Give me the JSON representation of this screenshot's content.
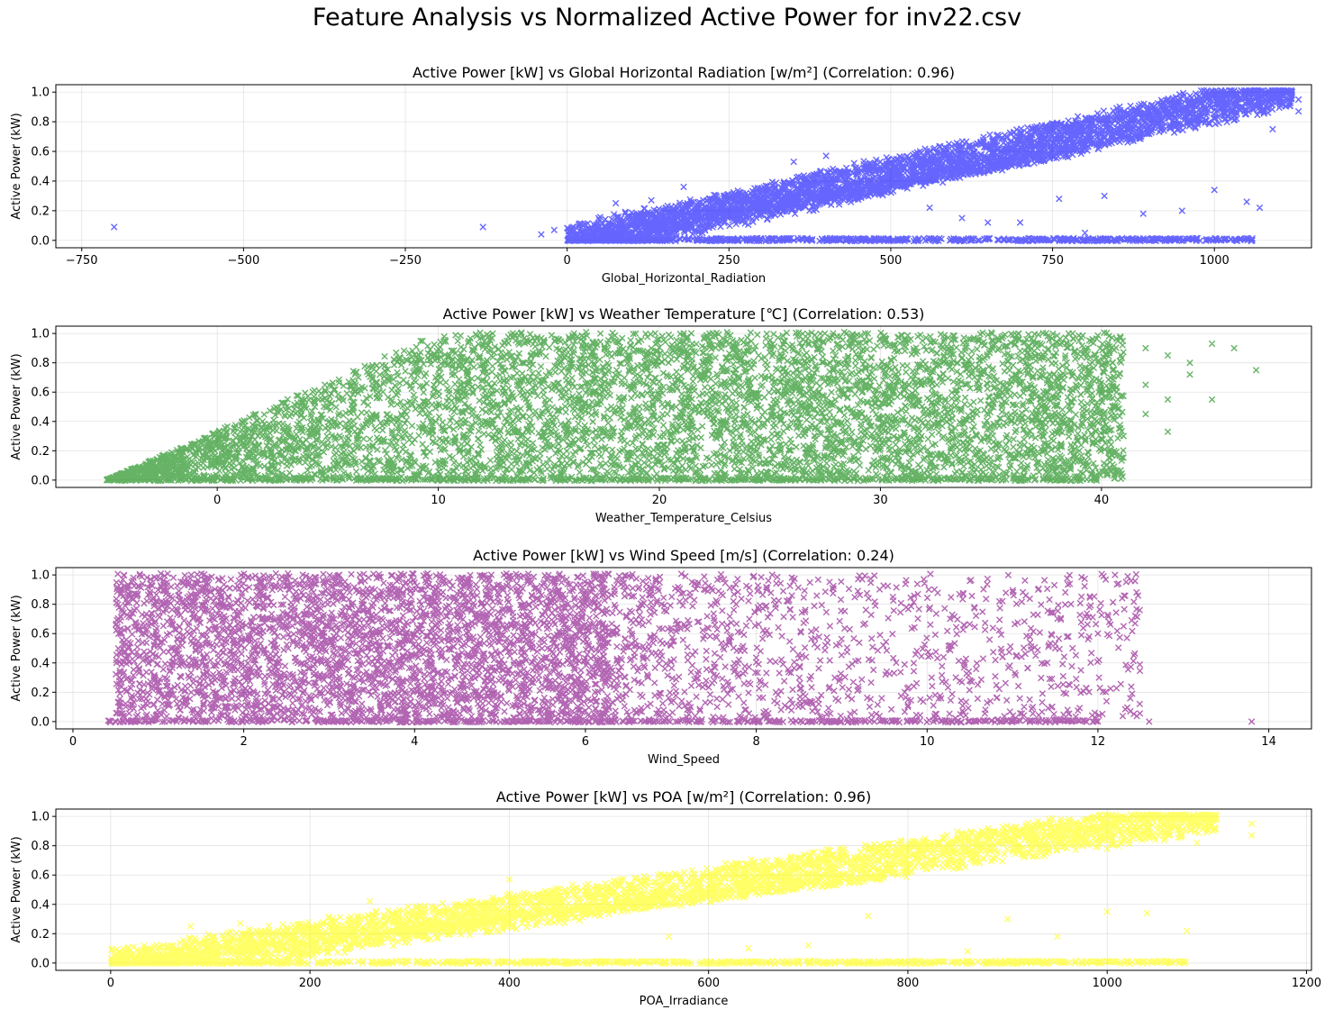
{
  "figure": {
    "suptitle": "Feature Analysis vs Normalized Active Power for inv22.csv"
  },
  "chart_data": [
    {
      "type": "scatter",
      "title": "Active Power [kW] vs Global Horizontal Radiation [w/m²] (Correlation: 0.96)",
      "xlabel": "Global_Horizontal_Radiation",
      "ylabel": "Active Power (kW)",
      "xlim": [
        -790,
        1150
      ],
      "ylim": [
        -0.05,
        1.05
      ],
      "xticks": [
        -750,
        -500,
        -250,
        0,
        250,
        500,
        750,
        1000
      ],
      "yticks": [
        0.0,
        0.2,
        0.4,
        0.6,
        0.8,
        1.0
      ],
      "marker": "x",
      "color": "#0000ff",
      "grid": true,
      "pattern": "linear",
      "x_range": [
        0,
        1120
      ],
      "slope": 0.00093,
      "zero_band": [
        0,
        1060
      ],
      "outliers": [
        [
          -700,
          0.09
        ],
        [
          -130,
          0.09
        ],
        [
          -40,
          0.04
        ],
        [
          -20,
          0.07
        ],
        [
          50,
          0.09
        ],
        [
          75,
          0.25
        ],
        [
          130,
          0.27
        ],
        [
          180,
          0.36
        ],
        [
          350,
          0.53
        ],
        [
          400,
          0.57
        ],
        [
          480,
          0.35
        ],
        [
          560,
          0.22
        ],
        [
          610,
          0.15
        ],
        [
          650,
          0.12
        ],
        [
          700,
          0.12
        ],
        [
          760,
          0.28
        ],
        [
          800,
          0.05
        ],
        [
          830,
          0.3
        ],
        [
          890,
          0.18
        ],
        [
          950,
          0.2
        ],
        [
          1000,
          0.34
        ],
        [
          1050,
          0.26
        ],
        [
          1070,
          0.22
        ],
        [
          1130,
          0.95
        ],
        [
          1130,
          0.87
        ],
        [
          1090,
          0.75
        ]
      ]
    },
    {
      "type": "scatter",
      "title": "Active Power [kW] vs Weather Temperature [℃] (Correlation: 0.53)",
      "xlabel": "Weather_Temperature_Celsius",
      "ylabel": "Active Power (kW)",
      "xlim": [
        -7.3,
        49.5
      ],
      "ylim": [
        -0.05,
        1.05
      ],
      "xticks": [
        0,
        10,
        20,
        30,
        40
      ],
      "yticks": [
        0.0,
        0.2,
        0.4,
        0.6,
        0.8,
        1.0
      ],
      "marker": "x",
      "color": "#008000",
      "grid": true,
      "pattern": "cloud",
      "x_range": [
        -5,
        40
      ],
      "core": [
        10,
        35
      ],
      "zero_band": [
        -5,
        40
      ],
      "outliers": [
        [
          42,
          0.9
        ],
        [
          43,
          0.85
        ],
        [
          44,
          0.8
        ],
        [
          45,
          0.93
        ],
        [
          46,
          0.9
        ],
        [
          47,
          0.75
        ],
        [
          44,
          0.72
        ],
        [
          43,
          0.55
        ],
        [
          45,
          0.55
        ],
        [
          43,
          0.33
        ],
        [
          41,
          0.3
        ],
        [
          42,
          0.45
        ],
        [
          42,
          0.65
        ],
        [
          39,
          0.2
        ],
        [
          40,
          0.6
        ],
        [
          38,
          0.7
        ]
      ]
    },
    {
      "type": "scatter",
      "title": "Active Power [kW] vs Wind Speed [m/s] (Correlation: 0.24)",
      "xlabel": "Wind_Speed",
      "ylabel": "Active Power (kW)",
      "xlim": [
        -0.2,
        14.5
      ],
      "ylim": [
        -0.05,
        1.05
      ],
      "xticks": [
        0,
        2,
        4,
        6,
        8,
        10,
        12,
        14
      ],
      "yticks": [
        0.0,
        0.2,
        0.4,
        0.6,
        0.8,
        1.0
      ],
      "marker": "x",
      "color": "#800080",
      "grid": true,
      "pattern": "dense-left",
      "x_range": [
        0.4,
        12.5
      ],
      "core": [
        0.5,
        6.2
      ],
      "zero_band": [
        0.4,
        12.0
      ],
      "outliers": [
        [
          12.4,
          0.19
        ],
        [
          12.2,
          1.0
        ],
        [
          13.8,
          0.0
        ],
        [
          12.6,
          0.0
        ],
        [
          11.9,
          0.78
        ],
        [
          12.0,
          0.6
        ],
        [
          11.8,
          0.35
        ],
        [
          11.5,
          0.5
        ],
        [
          10.5,
          0.28
        ],
        [
          11.2,
          0.15
        ],
        [
          10.8,
          0.42
        ],
        [
          11.3,
          0.9
        ]
      ]
    },
    {
      "type": "scatter",
      "title": "Active Power [kW] vs POA [w/m²] (Correlation: 0.96)",
      "xlabel": "POA_Irradiance",
      "ylabel": "Active Power (kW)",
      "xlim": [
        -55,
        1205
      ],
      "ylim": [
        -0.05,
        1.05
      ],
      "xticks": [
        0,
        200,
        400,
        600,
        800,
        1000,
        1200
      ],
      "yticks": [
        0.0,
        0.2,
        0.4,
        0.6,
        0.8,
        1.0
      ],
      "marker": "x",
      "color": "#ffff00",
      "grid": true,
      "pattern": "linear",
      "x_range": [
        0,
        1110
      ],
      "slope": 0.00093,
      "zero_band": [
        80,
        1080
      ],
      "outliers": [
        [
          80,
          0.25
        ],
        [
          130,
          0.27
        ],
        [
          260,
          0.42
        ],
        [
          400,
          0.57
        ],
        [
          560,
          0.18
        ],
        [
          640,
          0.1
        ],
        [
          700,
          0.12
        ],
        [
          760,
          0.32
        ],
        [
          860,
          0.08
        ],
        [
          900,
          0.3
        ],
        [
          950,
          0.18
        ],
        [
          1000,
          0.35
        ],
        [
          1040,
          0.34
        ],
        [
          1080,
          0.22
        ],
        [
          1145,
          0.95
        ],
        [
          1145,
          0.87
        ],
        [
          1090,
          0.82
        ]
      ]
    }
  ]
}
